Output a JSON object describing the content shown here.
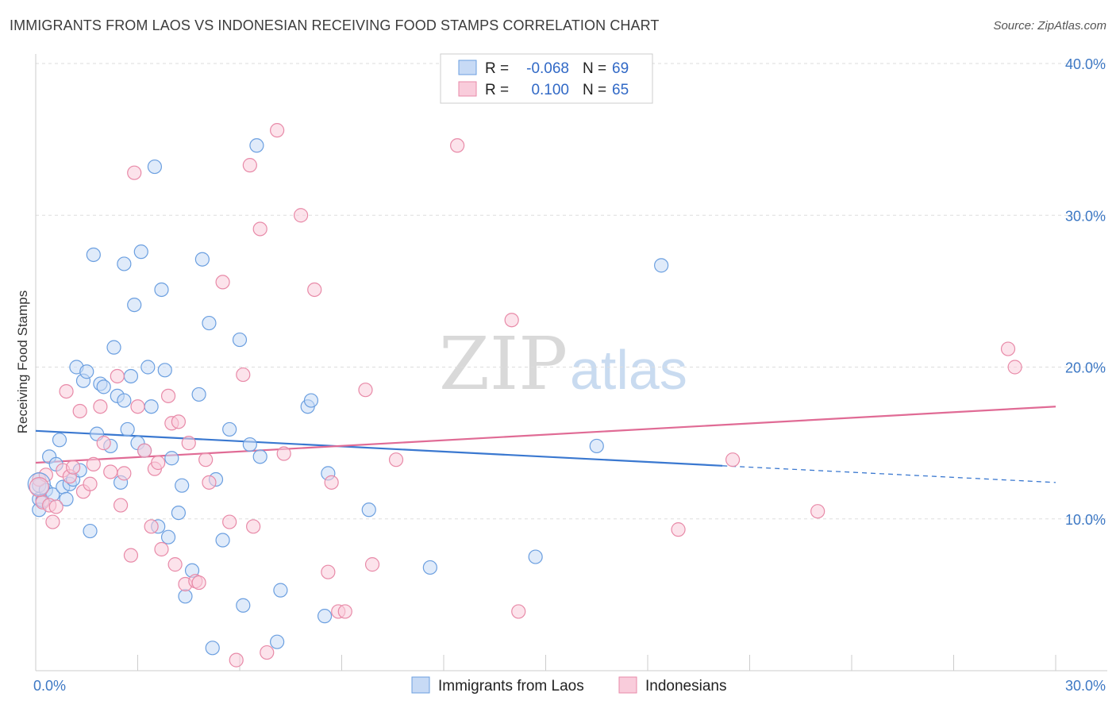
{
  "title": "IMMIGRANTS FROM LAOS VS INDONESIAN RECEIVING FOOD STAMPS CORRELATION CHART",
  "source": "Source: ZipAtlas.com",
  "watermark": {
    "part1": "ZIP",
    "part2": "atlas"
  },
  "chart_data": {
    "type": "scatter",
    "xlabel": "",
    "ylabel": "Receiving Food Stamps",
    "xlim": [
      0,
      30
    ],
    "ylim": [
      0,
      40
    ],
    "x_tick_labels": [
      {
        "value": 0,
        "label": "0.0%"
      },
      {
        "value": 30,
        "label": "30.0%"
      }
    ],
    "y_tick_labels": [
      {
        "value": 10,
        "label": "10.0%"
      },
      {
        "value": 20,
        "label": "20.0%"
      },
      {
        "value": 30,
        "label": "30.0%"
      },
      {
        "value": 40,
        "label": "40.0%"
      }
    ],
    "grid": "horizontal dashed",
    "legend_position": "top-center",
    "series": [
      {
        "name": "Immigrants from Laos",
        "color": "#6b9fe0",
        "fill": "#c7daf5",
        "line_color": "#3a78d0",
        "r_label": "R =",
        "r_value": "-0.068",
        "n_label": "N =",
        "n_value": "69",
        "trend": {
          "x0": 0,
          "y0": 15.8,
          "x1": 20.2,
          "y1": 13.5,
          "dash_x1": 30,
          "dash_y1": 12.4
        },
        "points": [
          [
            0.1,
            12.2
          ],
          [
            0.1,
            11.3
          ],
          [
            0.1,
            10.6
          ],
          [
            0.2,
            11.2
          ],
          [
            0.3,
            11.9
          ],
          [
            0.4,
            14.1
          ],
          [
            0.5,
            11.6
          ],
          [
            0.6,
            13.6
          ],
          [
            0.7,
            15.2
          ],
          [
            0.8,
            12.1
          ],
          [
            0.9,
            11.3
          ],
          [
            1.0,
            12.3
          ],
          [
            1.1,
            12.6
          ],
          [
            1.2,
            20.0
          ],
          [
            1.3,
            13.2
          ],
          [
            1.4,
            19.1
          ],
          [
            1.5,
            19.7
          ],
          [
            1.6,
            9.2
          ],
          [
            1.7,
            27.4
          ],
          [
            1.8,
            15.6
          ],
          [
            1.9,
            18.9
          ],
          [
            2.0,
            18.7
          ],
          [
            2.2,
            14.8
          ],
          [
            2.3,
            21.3
          ],
          [
            2.4,
            18.1
          ],
          [
            2.5,
            12.4
          ],
          [
            2.6,
            26.8
          ],
          [
            2.6,
            17.8
          ],
          [
            2.7,
            15.9
          ],
          [
            2.8,
            19.4
          ],
          [
            2.9,
            24.1
          ],
          [
            3.0,
            15.0
          ],
          [
            3.1,
            27.6
          ],
          [
            3.2,
            14.5
          ],
          [
            3.3,
            20.0
          ],
          [
            3.4,
            17.4
          ],
          [
            3.5,
            33.2
          ],
          [
            3.6,
            9.5
          ],
          [
            3.7,
            25.1
          ],
          [
            3.8,
            19.8
          ],
          [
            3.9,
            8.8
          ],
          [
            4.0,
            14.0
          ],
          [
            4.2,
            10.4
          ],
          [
            4.3,
            12.2
          ],
          [
            4.4,
            4.9
          ],
          [
            4.6,
            6.6
          ],
          [
            4.8,
            18.2
          ],
          [
            4.9,
            27.1
          ],
          [
            5.1,
            22.9
          ],
          [
            5.2,
            1.5
          ],
          [
            5.3,
            12.6
          ],
          [
            5.5,
            8.6
          ],
          [
            5.7,
            15.9
          ],
          [
            6.0,
            21.8
          ],
          [
            6.1,
            4.3
          ],
          [
            6.3,
            14.9
          ],
          [
            6.5,
            34.6
          ],
          [
            6.6,
            14.1
          ],
          [
            7.1,
            1.9
          ],
          [
            7.2,
            5.3
          ],
          [
            8.0,
            17.4
          ],
          [
            8.1,
            17.8
          ],
          [
            8.5,
            3.6
          ],
          [
            8.6,
            13.0
          ],
          [
            9.8,
            10.6
          ],
          [
            11.6,
            6.8
          ],
          [
            14.7,
            7.5
          ],
          [
            16.5,
            14.8
          ],
          [
            18.4,
            26.7
          ]
        ]
      },
      {
        "name": "Indonesians",
        "color": "#e88aa8",
        "fill": "#f9ccdb",
        "line_color": "#e06b95",
        "r_label": "R =",
        "r_value": "0.100",
        "n_label": "N =",
        "n_value": "65",
        "trend": {
          "x0": 0,
          "y0": 13.7,
          "x1": 30,
          "y1": 17.4
        },
        "points": [
          [
            0.1,
            12.6
          ],
          [
            0.2,
            11.1
          ],
          [
            0.3,
            12.9
          ],
          [
            0.4,
            10.9
          ],
          [
            0.5,
            9.8
          ],
          [
            0.6,
            10.8
          ],
          [
            0.8,
            13.2
          ],
          [
            0.9,
            18.4
          ],
          [
            1.0,
            12.8
          ],
          [
            1.1,
            13.4
          ],
          [
            1.3,
            17.1
          ],
          [
            1.4,
            11.8
          ],
          [
            1.6,
            12.3
          ],
          [
            1.7,
            13.6
          ],
          [
            1.9,
            17.4
          ],
          [
            2.0,
            15.0
          ],
          [
            2.2,
            13.1
          ],
          [
            2.4,
            19.4
          ],
          [
            2.5,
            10.9
          ],
          [
            2.6,
            13.0
          ],
          [
            2.8,
            7.6
          ],
          [
            2.9,
            32.8
          ],
          [
            3.0,
            17.4
          ],
          [
            3.2,
            14.5
          ],
          [
            3.4,
            9.5
          ],
          [
            3.5,
            13.3
          ],
          [
            3.6,
            13.7
          ],
          [
            3.7,
            8.0
          ],
          [
            3.9,
            18.1
          ],
          [
            4.0,
            16.3
          ],
          [
            4.1,
            7.0
          ],
          [
            4.2,
            16.4
          ],
          [
            4.4,
            5.7
          ],
          [
            4.5,
            15.0
          ],
          [
            4.7,
            5.9
          ],
          [
            4.8,
            5.8
          ],
          [
            5.0,
            13.9
          ],
          [
            5.1,
            12.4
          ],
          [
            5.5,
            25.6
          ],
          [
            5.7,
            9.8
          ],
          [
            5.9,
            0.7
          ],
          [
            6.1,
            19.5
          ],
          [
            6.3,
            33.3
          ],
          [
            6.4,
            9.5
          ],
          [
            6.6,
            29.1
          ],
          [
            6.8,
            1.2
          ],
          [
            7.1,
            35.6
          ],
          [
            7.3,
            14.3
          ],
          [
            7.8,
            30.0
          ],
          [
            8.2,
            25.1
          ],
          [
            8.6,
            6.5
          ],
          [
            8.7,
            12.4
          ],
          [
            8.9,
            3.9
          ],
          [
            9.1,
            3.9
          ],
          [
            9.7,
            18.5
          ],
          [
            9.9,
            7.0
          ],
          [
            10.6,
            13.9
          ],
          [
            12.4,
            34.6
          ],
          [
            14.0,
            23.1
          ],
          [
            14.2,
            3.9
          ],
          [
            18.9,
            9.3
          ],
          [
            20.5,
            13.9
          ],
          [
            23.0,
            10.5
          ],
          [
            28.6,
            21.2
          ],
          [
            28.8,
            20.0
          ]
        ]
      }
    ]
  }
}
